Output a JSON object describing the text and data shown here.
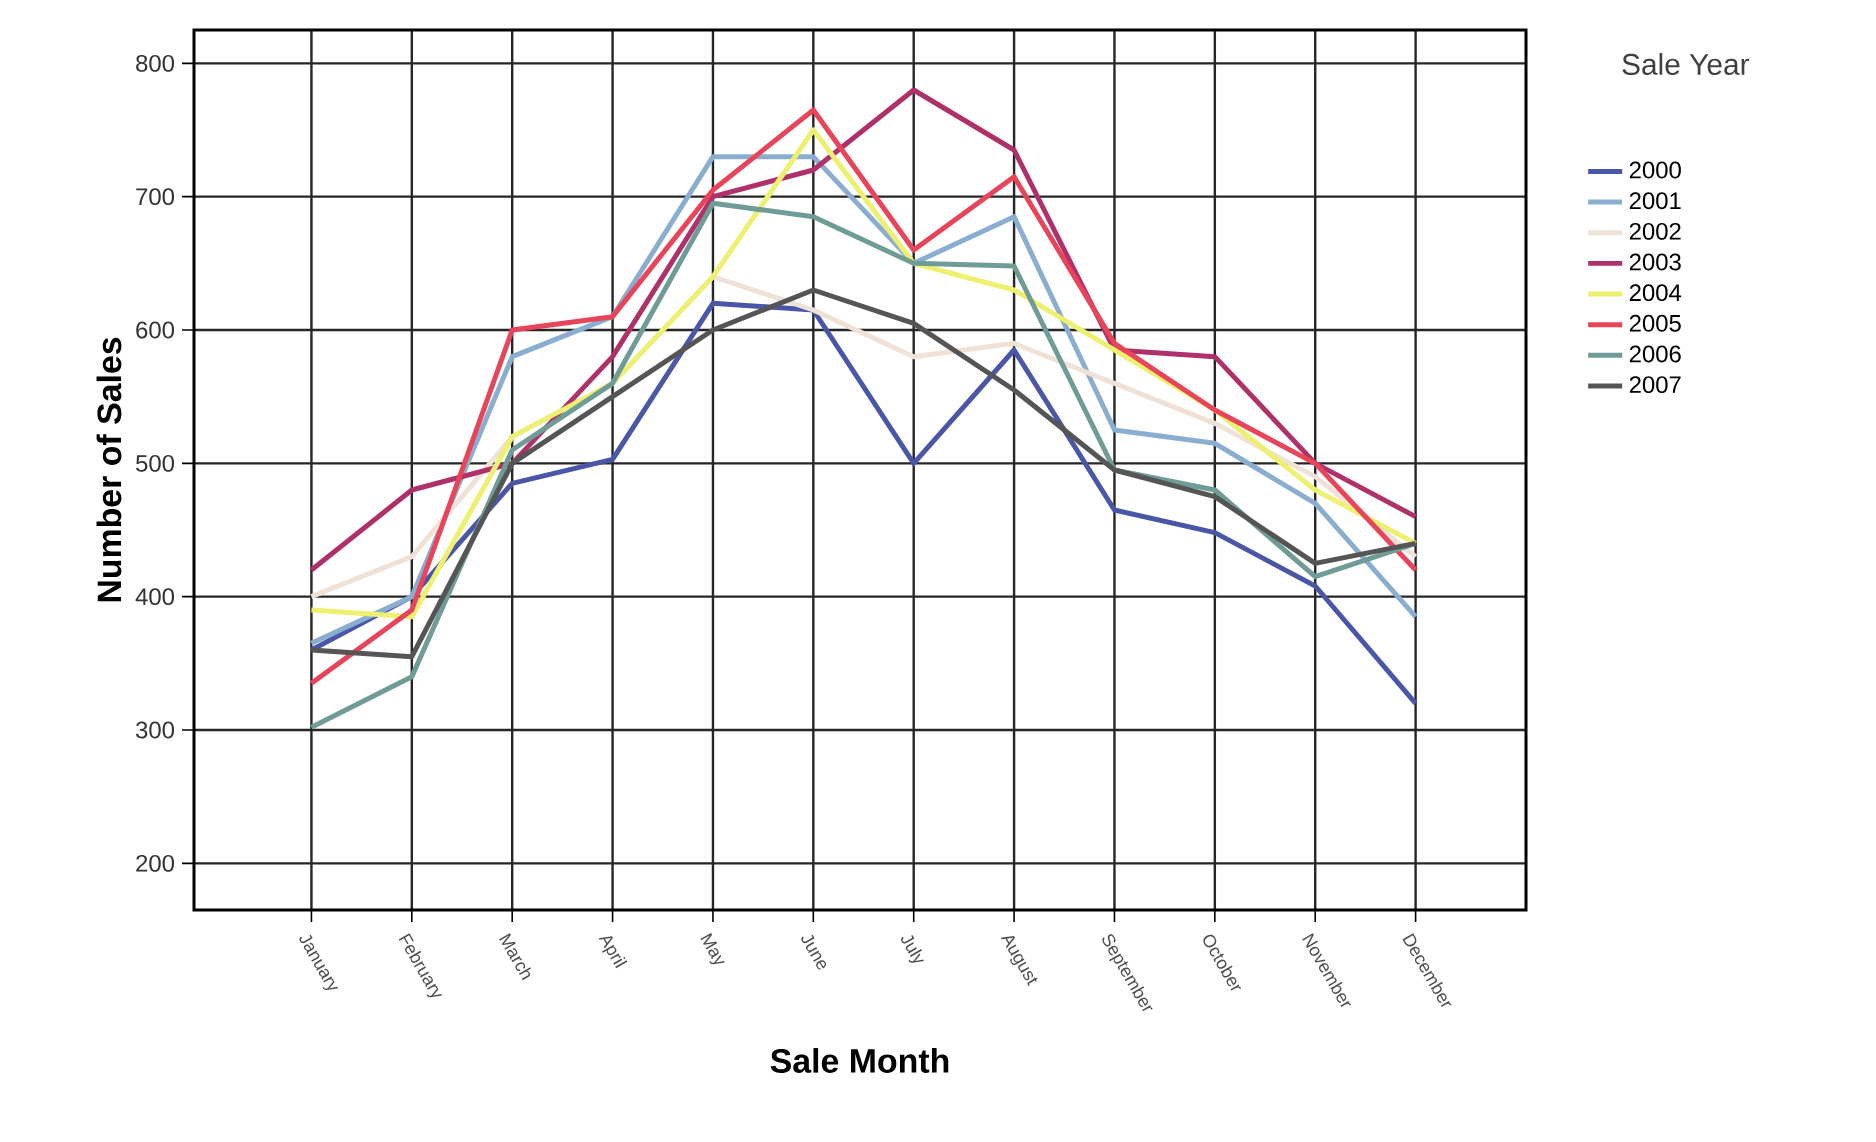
{
  "chart_data": {
    "type": "line",
    "xlabel": "Sale Month",
    "ylabel": "Number of Sales",
    "legend_title": "Sale Year",
    "categories": [
      "January",
      "February",
      "March",
      "April",
      "May",
      "June",
      "July",
      "August",
      "September",
      "October",
      "November",
      "December"
    ],
    "ylim": [
      165,
      825
    ],
    "yticks": [
      200,
      300,
      400,
      500,
      600,
      700,
      800
    ],
    "grid": true,
    "legend": "right",
    "line_style": "solid",
    "series": [
      {
        "name": "2000",
        "color": "#4a56a8",
        "values": [
          360,
          400,
          485,
          503,
          620,
          615,
          500,
          585,
          465,
          448,
          408,
          320
        ]
      },
      {
        "name": "2001",
        "color": "#8aaed0",
        "values": [
          365,
          400,
          580,
          610,
          730,
          730,
          650,
          685,
          525,
          515,
          470,
          385
        ]
      },
      {
        "name": "2002",
        "color": "#f0e2d6",
        "values": [
          400,
          430,
          520,
          560,
          640,
          615,
          580,
          590,
          560,
          530,
          490,
          430
        ]
      },
      {
        "name": "2003",
        "color": "#b0306a",
        "values": [
          420,
          480,
          500,
          580,
          700,
          720,
          780,
          735,
          585,
          580,
          500,
          460
        ]
      },
      {
        "name": "2004",
        "color": "#eef070",
        "values": [
          390,
          385,
          520,
          560,
          640,
          750,
          650,
          630,
          585,
          540,
          480,
          440
        ]
      },
      {
        "name": "2005",
        "color": "#e8445a",
        "values": [
          335,
          390,
          600,
          610,
          705,
          765,
          660,
          715,
          590,
          540,
          500,
          420
        ]
      },
      {
        "name": "2006",
        "color": "#6f9c96",
        "values": [
          302,
          340,
          510,
          560,
          695,
          685,
          650,
          648,
          495,
          480,
          415,
          440
        ]
      },
      {
        "name": "2007",
        "color": "#555555",
        "values": [
          360,
          355,
          500,
          550,
          600,
          630,
          605,
          555,
          495,
          475,
          425,
          440
        ]
      }
    ]
  }
}
